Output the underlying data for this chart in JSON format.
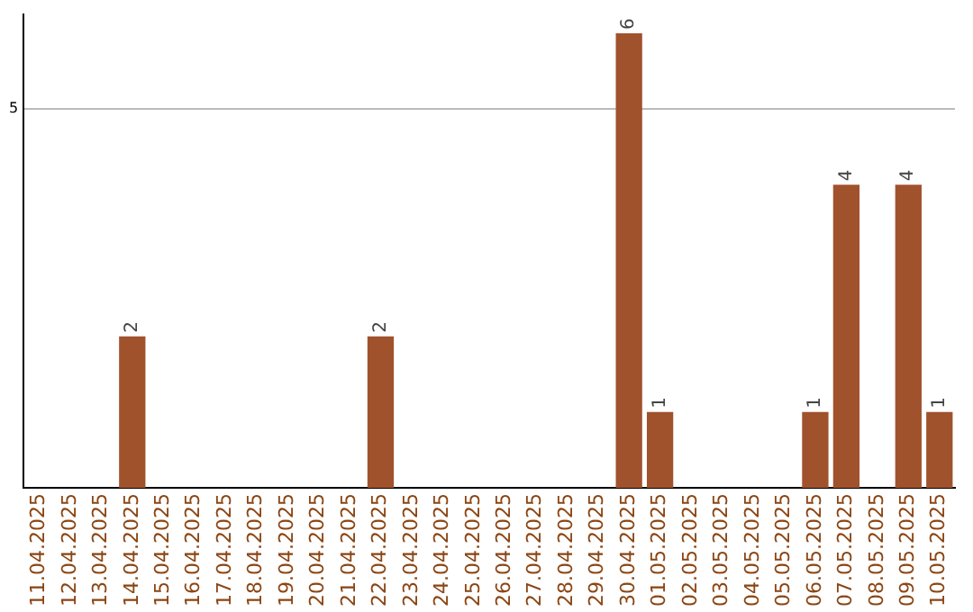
{
  "chart_data": {
    "type": "bar",
    "categories": [
      "11.04.2025",
      "12.04.2025",
      "13.04.2025",
      "14.04.2025",
      "15.04.2025",
      "16.04.2025",
      "17.04.2025",
      "18.04.2025",
      "19.04.2025",
      "20.04.2025",
      "21.04.2025",
      "22.04.2025",
      "23.04.2025",
      "24.04.2025",
      "25.04.2025",
      "26.04.2025",
      "27.04.2025",
      "28.04.2025",
      "29.04.2025",
      "30.04.2025",
      "01.05.2025",
      "02.05.2025",
      "03.05.2025",
      "04.05.2025",
      "05.05.2025",
      "06.05.2025",
      "07.05.2025",
      "08.05.2025",
      "09.05.2025",
      "10.05.2025"
    ],
    "values": [
      0,
      0,
      0,
      2,
      0,
      0,
      0,
      0,
      0,
      0,
      0,
      2,
      0,
      0,
      0,
      0,
      0,
      0,
      0,
      6,
      1,
      0,
      0,
      0,
      0,
      1,
      4,
      0,
      4,
      1
    ],
    "color": "#a0522d",
    "ylim": [
      0,
      6.25
    ],
    "yticks": [
      5
    ],
    "value_labels": [
      null,
      null,
      null,
      "2",
      null,
      null,
      null,
      null,
      null,
      null,
      null,
      "2",
      null,
      null,
      null,
      null,
      null,
      null,
      null,
      "6",
      "1",
      null,
      null,
      null,
      null,
      "1",
      "4",
      null,
      "4",
      "1"
    ],
    "grid": "y",
    "legend": false
  }
}
